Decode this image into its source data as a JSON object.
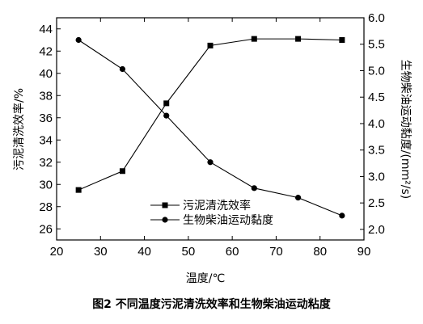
{
  "caption": "图2  不同温度污泥清洗效率和生物柴油运动粘度",
  "chart_data": {
    "type": "line",
    "x": [
      25,
      35,
      45,
      55,
      65,
      75,
      85
    ],
    "xlabel": "温度/℃",
    "ylabel_left": "污泥清洗效率/%",
    "ylabel_right": "生物柴油运动黏度/(mm²/s)",
    "xlim": [
      20,
      90
    ],
    "ylim_left": [
      25,
      45
    ],
    "ylim_right": [
      1.8,
      6.0
    ],
    "x_ticks": [
      20,
      30,
      40,
      50,
      60,
      70,
      80,
      90
    ],
    "y_ticks_left": [
      26,
      28,
      30,
      32,
      34,
      36,
      38,
      40,
      42,
      44
    ],
    "y_ticks_right": [
      "2.0",
      "2.5",
      "3.0",
      "3.5",
      "4.0",
      "4.5",
      "5.0",
      "5.5",
      "6.0"
    ],
    "grid": false,
    "legend_position": "bottom-center",
    "series": [
      {
        "name": "污泥清洗效率",
        "axis": "left",
        "marker": "square",
        "values": [
          29.5,
          31.2,
          37.3,
          42.5,
          43.1,
          43.1,
          43.0
        ]
      },
      {
        "name": "生物柴油运动黏度",
        "axis": "right",
        "marker": "circle",
        "values": [
          5.58,
          5.03,
          4.15,
          3.27,
          2.78,
          2.6,
          2.26
        ]
      }
    ]
  }
}
